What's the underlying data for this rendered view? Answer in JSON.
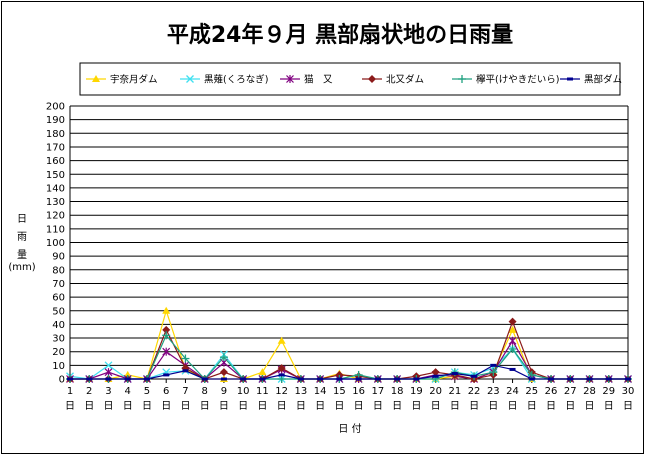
{
  "chart_data": {
    "type": "line",
    "title": "平成24年９月 黒部扇状地の日雨量",
    "xlabel": "日 付",
    "ylabel_chars": [
      "日",
      "雨",
      "量",
      "(mm)"
    ],
    "ylim": [
      0,
      200
    ],
    "yticks": [
      0,
      10,
      20,
      30,
      40,
      50,
      60,
      70,
      80,
      90,
      100,
      110,
      120,
      130,
      140,
      150,
      160,
      170,
      180,
      190,
      200
    ],
    "x": [
      1,
      2,
      3,
      4,
      5,
      6,
      7,
      8,
      9,
      10,
      11,
      12,
      13,
      14,
      15,
      16,
      17,
      18,
      19,
      20,
      21,
      22,
      23,
      24,
      25,
      26,
      27,
      28,
      29,
      30
    ],
    "x_suffix": "日",
    "grid": true,
    "legend_position": "top",
    "series": [
      {
        "name": "宇奈月ダム",
        "color": "#FFD700",
        "marker": "triangle",
        "values": [
          0,
          0,
          0,
          3,
          0,
          50,
          7,
          0,
          0,
          0,
          5,
          28,
          0,
          0,
          4,
          0,
          0,
          0,
          0,
          0,
          2,
          0,
          5,
          36,
          0,
          0,
          0,
          0,
          0,
          0
        ]
      },
      {
        "name": "黒薙(くろなぎ)",
        "color": "#40E0F0",
        "marker": "x",
        "values": [
          2,
          0,
          10,
          0,
          0,
          5,
          6,
          0,
          18,
          0,
          0,
          0,
          0,
          0,
          0,
          0,
          0,
          0,
          0,
          0,
          5,
          3,
          8,
          22,
          0,
          0,
          0,
          0,
          0,
          0
        ]
      },
      {
        "name": "猫　又",
        "color": "#800080",
        "marker": "star",
        "values": [
          0,
          0,
          5,
          0,
          0,
          20,
          10,
          0,
          12,
          0,
          0,
          7,
          0,
          0,
          0,
          0,
          0,
          0,
          0,
          3,
          2,
          0,
          5,
          28,
          3,
          0,
          0,
          0,
          0,
          0
        ]
      },
      {
        "name": "北又ダム",
        "color": "#8B1A1A",
        "marker": "diamond",
        "values": [
          0,
          0,
          0,
          0,
          0,
          36,
          8,
          0,
          5,
          0,
          0,
          8,
          0,
          0,
          3,
          2,
          0,
          0,
          2,
          5,
          3,
          0,
          3,
          42,
          5,
          0,
          0,
          0,
          0,
          0
        ]
      },
      {
        "name": "欅平(けやきだいら)",
        "color": "#20A080",
        "marker": "plus",
        "values": [
          0,
          0,
          0,
          0,
          0,
          32,
          15,
          0,
          16,
          0,
          0,
          0,
          0,
          0,
          0,
          3,
          0,
          0,
          0,
          0,
          5,
          2,
          5,
          22,
          3,
          0,
          0,
          0,
          0,
          0
        ]
      },
      {
        "name": "黒部ダム",
        "color": "#000090",
        "marker": "dash",
        "values": [
          0,
          0,
          0,
          0,
          0,
          3,
          6,
          0,
          0,
          0,
          0,
          3,
          0,
          0,
          0,
          0,
          0,
          0,
          0,
          2,
          4,
          2,
          10,
          7,
          0,
          0,
          0,
          0,
          0,
          0
        ]
      }
    ]
  }
}
